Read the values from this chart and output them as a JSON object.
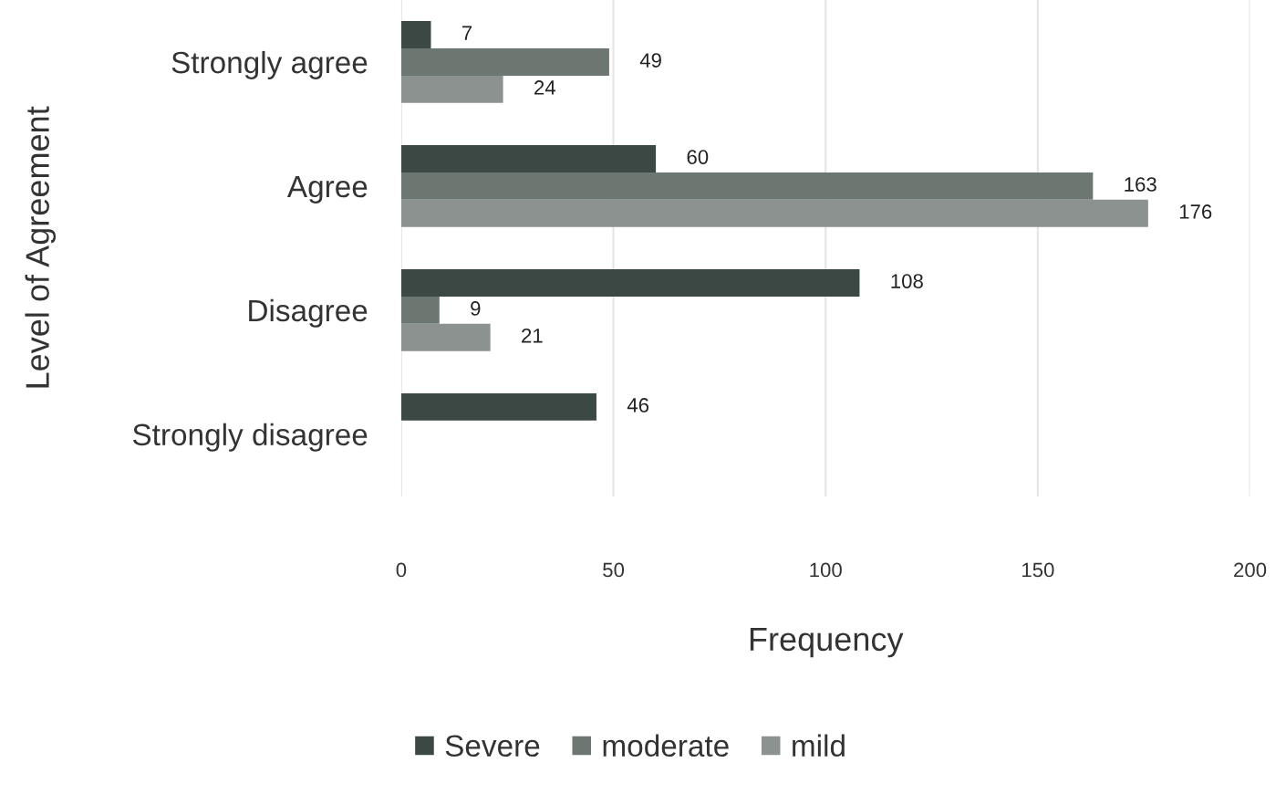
{
  "chart_data": {
    "type": "bar",
    "orientation": "horizontal",
    "categories": [
      "Strongly agree",
      "Agree",
      "Disagree",
      "Strongly disagree"
    ],
    "series": [
      {
        "name": "Severe",
        "color": "#3b4843",
        "values": [
          7,
          60,
          108,
          46
        ]
      },
      {
        "name": "moderate",
        "color": "#6d7772",
        "values": [
          49,
          163,
          9,
          null
        ]
      },
      {
        "name": "mild",
        "color": "#8b928f",
        "values": [
          24,
          176,
          21,
          null
        ]
      }
    ],
    "xlabel": "Frequency",
    "ylabel": "Level of Agreement",
    "xlim": [
      0,
      200
    ],
    "xticks": [
      0,
      50,
      100,
      150,
      200
    ],
    "grid": "x",
    "legend": "bottom",
    "data_labels": true
  }
}
